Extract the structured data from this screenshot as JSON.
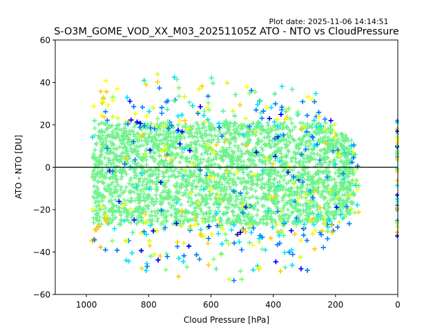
{
  "chart_data": {
    "type": "scatter",
    "title": "S-O3M_GOME_VOD_XX_M03_20251105Z ATO - NTO vs CloudPressure",
    "subtitle": "Plot date: 2025-11-06 14:14:51",
    "xlabel": "Cloud Pressure [hPa]",
    "ylabel": "ATO - NTO [DU]",
    "xlim": [
      1100,
      0
    ],
    "ylim": [
      -60,
      60
    ],
    "x_inverted": true,
    "xticks": [
      1000,
      800,
      600,
      400,
      200,
      0
    ],
    "xtick_labels": [
      "1000",
      "800",
      "600",
      "400",
      "200",
      "0"
    ],
    "yticks": [
      -60,
      -40,
      -20,
      0,
      20,
      40,
      60
    ],
    "ytick_labels": [
      "−60",
      "−40",
      "−20",
      "0",
      "20",
      "40",
      "60"
    ],
    "reference_line": {
      "y": 0,
      "color": "#000000"
    },
    "grid": false,
    "marker": "+",
    "colormap": "jet",
    "colormap_stops": [
      "#0000ff",
      "#0080ff",
      "#00e5ff",
      "#5cf2a0",
      "#80ff70",
      "#d4ff20",
      "#ffff00",
      "#ffd000",
      "#ffb000"
    ],
    "dense_core_color": "#6ef28a",
    "distribution": {
      "description": "Dense cloud of points; most points near 0 DU with spread ±30 DU; outliers to ~+57 / −54 DU",
      "x_range": [
        980,
        120
      ],
      "core_y_range": [
        -20,
        20
      ],
      "outer_y_range": [
        -54,
        57
      ],
      "edge_points_at_x": 0
    },
    "envelope": [
      {
        "x": 1000,
        "ymin": -35,
        "ymax": 22
      },
      {
        "x": 960,
        "ymin": -42,
        "ymax": 50
      },
      {
        "x": 900,
        "ymin": -50,
        "ymax": 42
      },
      {
        "x": 800,
        "ymin": -52,
        "ymax": 45
      },
      {
        "x": 700,
        "ymin": -52,
        "ymax": 42
      },
      {
        "x": 600,
        "ymin": -53,
        "ymax": 45
      },
      {
        "x": 500,
        "ymin": -55,
        "ymax": 45
      },
      {
        "x": 400,
        "ymin": -50,
        "ymax": 45
      },
      {
        "x": 300,
        "ymin": -50,
        "ymax": 42
      },
      {
        "x": 250,
        "ymin": -45,
        "ymax": 34
      },
      {
        "x": 200,
        "ymin": -40,
        "ymax": 22
      },
      {
        "x": 150,
        "ymin": -30,
        "ymax": 20
      },
      {
        "x": 120,
        "ymin": -20,
        "ymax": 8
      }
    ]
  }
}
